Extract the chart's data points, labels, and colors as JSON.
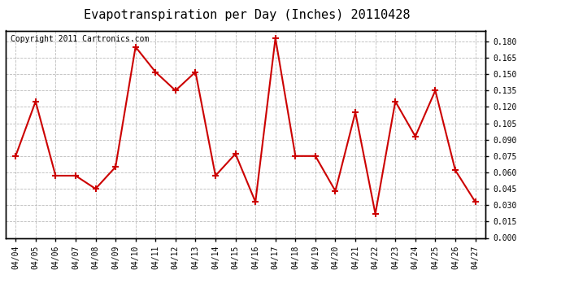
{
  "title": "Evapotranspiration per Day (Inches) 20110428",
  "copyright_text": "Copyright 2011 Cartronics.com",
  "dates": [
    "04/04",
    "04/05",
    "04/06",
    "04/07",
    "04/08",
    "04/09",
    "04/10",
    "04/11",
    "04/12",
    "04/13",
    "04/14",
    "04/15",
    "04/16",
    "04/17",
    "04/18",
    "04/19",
    "04/20",
    "04/21",
    "04/22",
    "04/23",
    "04/24",
    "04/25",
    "04/26",
    "04/27"
  ],
  "values": [
    0.075,
    0.125,
    0.057,
    0.057,
    0.045,
    0.065,
    0.175,
    0.152,
    0.135,
    0.152,
    0.057,
    0.077,
    0.033,
    0.183,
    0.075,
    0.075,
    0.043,
    0.115,
    0.022,
    0.125,
    0.093,
    0.135,
    0.062,
    0.033
  ],
  "line_color": "#cc0000",
  "marker": "+",
  "marker_size": 6,
  "marker_color": "#cc0000",
  "background_color": "#ffffff",
  "grid_color": "#bbbbbb",
  "ylim": [
    0.0,
    0.19
  ],
  "yticks": [
    0.0,
    0.015,
    0.03,
    0.045,
    0.06,
    0.075,
    0.09,
    0.105,
    0.12,
    0.135,
    0.15,
    0.165,
    0.18
  ],
  "title_fontsize": 11,
  "copyright_fontsize": 7,
  "tick_fontsize": 7,
  "line_width": 1.5
}
